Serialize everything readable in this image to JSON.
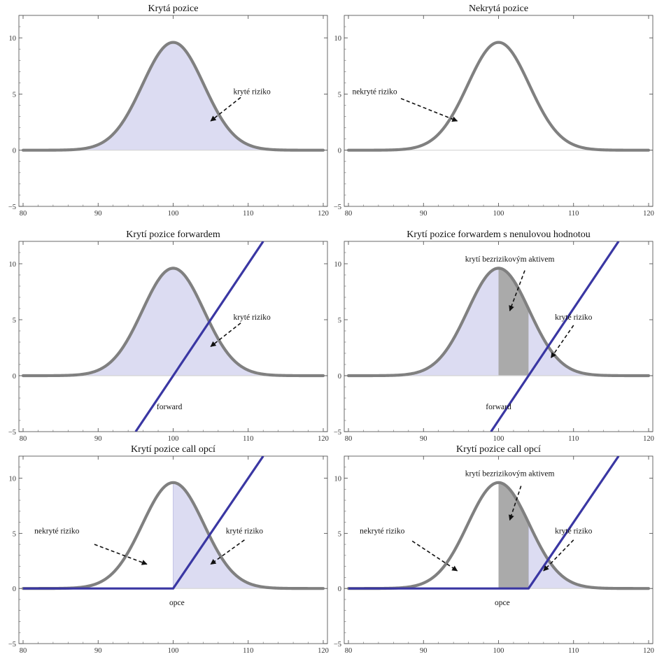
{
  "chart_data": [
    {
      "type": "area",
      "title": "Krytá pozice",
      "xlim": [
        80,
        120
      ],
      "ylim": [
        -5,
        12
      ],
      "xticks": [
        80,
        90,
        100,
        110,
        120
      ],
      "yticks": [
        -5,
        0,
        5,
        10
      ],
      "density": {
        "mean": 100,
        "sd": 4.1,
        "peak": 9.6
      },
      "shade": {
        "mode": "full",
        "from": 80,
        "to": 120,
        "color": "#dcdcf2"
      },
      "gray_band": null,
      "line": null,
      "annotations": [
        {
          "text": "kryté riziko",
          "at": [
            110.5,
            5
          ],
          "arrow_from": [
            109,
            4.7
          ],
          "arrow_to": [
            105,
            2.6
          ]
        }
      ]
    },
    {
      "type": "area",
      "title": "Nekrytá pozice",
      "xlim": [
        80,
        120
      ],
      "ylim": [
        -5,
        12
      ],
      "xticks": [
        80,
        90,
        100,
        110,
        120
      ],
      "yticks": [
        -5,
        0,
        5,
        10
      ],
      "density": {
        "mean": 100,
        "sd": 4.1,
        "peak": 9.6
      },
      "shade": null,
      "gray_band": null,
      "line": null,
      "annotations": [
        {
          "text": "nekryté riziko",
          "at": [
            83.5,
            5
          ],
          "arrow_from": [
            87,
            4.6
          ],
          "arrow_to": [
            94.5,
            2.6
          ]
        }
      ]
    },
    {
      "type": "area",
      "title": "Krytí pozice forwardem",
      "xlim": [
        80,
        120
      ],
      "ylim": [
        -5,
        12
      ],
      "xticks": [
        80,
        90,
        100,
        110,
        120
      ],
      "yticks": [
        -5,
        0,
        5,
        10
      ],
      "density": {
        "mean": 100,
        "sd": 4.1,
        "peak": 9.6
      },
      "shade": {
        "mode": "full",
        "from": 80,
        "to": 120,
        "color": "#dcdcf2"
      },
      "gray_band": null,
      "line": {
        "label": "forward",
        "points": [
          [
            95,
            -5
          ],
          [
            112,
            12
          ]
        ],
        "color": "#3a37a3",
        "label_at": [
          99.5,
          -3
        ]
      },
      "annotations": [
        {
          "text": "kryté riziko",
          "at": [
            110.5,
            5
          ],
          "arrow_from": [
            109,
            4.7
          ],
          "arrow_to": [
            105,
            2.6
          ]
        }
      ]
    },
    {
      "type": "area",
      "title": "Krytí pozice forwardem s nenulovou hodnotou",
      "xlim": [
        80,
        120
      ],
      "ylim": [
        -5,
        12
      ],
      "xticks": [
        80,
        90,
        100,
        110,
        120
      ],
      "yticks": [
        -5,
        0,
        5,
        10
      ],
      "density": {
        "mean": 100,
        "sd": 4.1,
        "peak": 9.6
      },
      "shade": {
        "mode": "full",
        "from": 80,
        "to": 120,
        "color": "#dcdcf2"
      },
      "gray_band": {
        "from": 100,
        "to": 104,
        "color": "#aaaaaa"
      },
      "line": {
        "label": "forward",
        "points": [
          [
            99,
            -5
          ],
          [
            116,
            12
          ]
        ],
        "color": "#3a37a3",
        "label_at": [
          100,
          -3
        ]
      },
      "annotations": [
        {
          "text": "krytí bezrizikovým aktivem",
          "at": [
            101.5,
            10.2
          ],
          "arrow_from": [
            103.5,
            9.4
          ],
          "arrow_to": [
            101.5,
            5.8
          ]
        },
        {
          "text": "kryté riziko",
          "at": [
            110,
            5
          ],
          "arrow_from": [
            110,
            4.5
          ],
          "arrow_to": [
            107,
            1.6
          ]
        }
      ]
    },
    {
      "type": "area",
      "title": "Krytí pozice call opcí",
      "xlim": [
        80,
        120
      ],
      "ylim": [
        -5,
        12
      ],
      "xticks": [
        80,
        90,
        100,
        110,
        120
      ],
      "yticks": [
        -5,
        0,
        5,
        10
      ],
      "density": {
        "mean": 100,
        "sd": 4.1,
        "peak": 9.6
      },
      "shade": {
        "mode": "right",
        "from": 100,
        "to": 120,
        "color": "#dcdcf2"
      },
      "gray_band": null,
      "line": {
        "label": "opce",
        "points": [
          [
            80,
            0
          ],
          [
            100,
            0
          ],
          [
            112,
            12
          ]
        ],
        "color": "#3a37a3",
        "label_at": [
          100.5,
          -1.5
        ]
      },
      "annotations": [
        {
          "text": "nekryté riziko",
          "at": [
            84.5,
            5
          ],
          "arrow_from": [
            89.5,
            4
          ],
          "arrow_to": [
            96.5,
            2.2
          ]
        },
        {
          "text": "kryté riziko",
          "at": [
            109.5,
            5
          ],
          "arrow_from": [
            109.5,
            4.4
          ],
          "arrow_to": [
            105,
            2.2
          ]
        }
      ]
    },
    {
      "type": "area",
      "title": "Krytí pozice call opcí",
      "xlim": [
        80,
        120
      ],
      "ylim": [
        -5,
        12
      ],
      "xticks": [
        80,
        90,
        100,
        110,
        120
      ],
      "yticks": [
        -5,
        0,
        5,
        10
      ],
      "density": {
        "mean": 100,
        "sd": 4.1,
        "peak": 9.6
      },
      "shade": {
        "mode": "right",
        "from": 104,
        "to": 120,
        "color": "#dcdcf2"
      },
      "gray_band": {
        "from": 100,
        "to": 104,
        "color": "#aaaaaa"
      },
      "line": {
        "label": "opce",
        "points": [
          [
            80,
            0
          ],
          [
            104,
            0
          ],
          [
            116,
            12
          ]
        ],
        "color": "#3a37a3",
        "label_at": [
          100.5,
          -1.5
        ]
      },
      "annotations": [
        {
          "text": "krytí bezrizikovým aktivem",
          "at": [
            101.5,
            10.2
          ],
          "arrow_from": [
            103,
            9.3
          ],
          "arrow_to": [
            101.5,
            6.2
          ]
        },
        {
          "text": "nekryté riziko",
          "at": [
            84.5,
            5
          ],
          "arrow_from": [
            88.5,
            4.3
          ],
          "arrow_to": [
            94.5,
            1.6
          ]
        },
        {
          "text": "kryté riziko",
          "at": [
            110,
            5
          ],
          "arrow_from": [
            110,
            4.4
          ],
          "arrow_to": [
            106,
            1.6
          ]
        }
      ]
    }
  ]
}
